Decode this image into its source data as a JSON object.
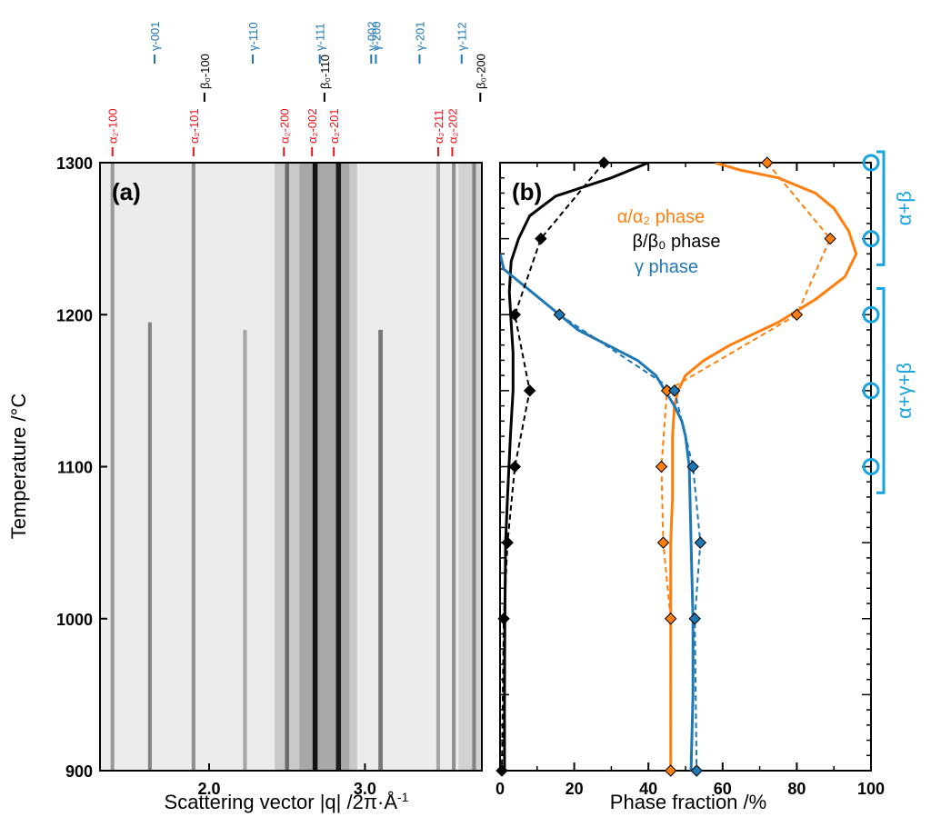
{
  "colors": {
    "alpha": "#ff7f0e",
    "beta": "#000000",
    "gamma": "#1f77b4",
    "alpha_ref": "#e8141a",
    "gamma_ref": "#1f77b4",
    "beta_ref": "#000000",
    "phase_region": "#1aa3dc"
  },
  "chart_data": [
    {
      "type": "heatmap",
      "panel_label": "(a)",
      "xlabel": "Scattering vector |q| /2π·Å",
      "xlabel_sup": "-1",
      "ylabel": "Temperature /°C",
      "xlim": [
        1.3,
        3.75
      ],
      "ylim": [
        900,
        1300
      ],
      "xticks": [
        2.0,
        3.0
      ],
      "xtick_labels": [
        "2.0",
        "3.0"
      ],
      "yticks": [
        900,
        1000,
        1100,
        1200,
        1300
      ],
      "ytick_labels": [
        "900",
        "1000",
        "1100",
        "1200",
        "1300"
      ],
      "peaks": [
        {
          "q": 1.38,
          "intensity": 0.35,
          "width": 0.012,
          "t_end": 1300
        },
        {
          "q": 1.62,
          "intensity": 0.45,
          "width": 0.012,
          "t_end": 1195
        },
        {
          "q": 1.9,
          "intensity": 0.4,
          "width": 0.012,
          "t_end": 1300
        },
        {
          "q": 2.23,
          "intensity": 0.3,
          "width": 0.012,
          "t_end": 1190
        },
        {
          "q": 2.5,
          "intensity": 0.55,
          "width": 0.013,
          "t_end": 1300
        },
        {
          "q": 2.68,
          "intensity": 0.95,
          "width": 0.016,
          "t_end": 1300
        },
        {
          "q": 2.83,
          "intensity": 0.9,
          "width": 0.016,
          "t_end": 1300
        },
        {
          "q": 3.1,
          "intensity": 0.5,
          "width": 0.014,
          "t_end": 1190
        },
        {
          "q": 3.47,
          "intensity": 0.3,
          "width": 0.012,
          "t_end": 1300
        },
        {
          "q": 3.57,
          "intensity": 0.4,
          "width": 0.012,
          "t_end": 1300
        },
        {
          "q": 3.7,
          "intensity": 0.45,
          "width": 0.012,
          "t_end": 1300
        }
      ],
      "reference_lines": [
        {
          "phase": "alpha",
          "label": "α₂-100",
          "q": 1.38,
          "row": 3
        },
        {
          "phase": "alpha",
          "label": "α₂-101",
          "q": 1.9,
          "row": 3
        },
        {
          "phase": "alpha",
          "label": "α₂-200",
          "q": 2.48,
          "row": 3
        },
        {
          "phase": "alpha",
          "label": "α₂-002",
          "q": 2.66,
          "row": 3
        },
        {
          "phase": "alpha",
          "label": "α₂-201",
          "q": 2.8,
          "row": 3
        },
        {
          "phase": "alpha",
          "label": "α₂-211",
          "q": 3.47,
          "row": 3
        },
        {
          "phase": "alpha",
          "label": "α₂-202",
          "q": 3.56,
          "row": 3
        },
        {
          "phase": "beta",
          "label": "β₀-100",
          "q": 1.97,
          "row": 2
        },
        {
          "phase": "beta",
          "label": "β₀-110",
          "q": 2.74,
          "row": 2
        },
        {
          "phase": "beta",
          "label": "β₀-200",
          "q": 3.74,
          "row": 2
        },
        {
          "phase": "gamma",
          "label": "γ-001",
          "q": 1.65,
          "row": 1
        },
        {
          "phase": "gamma",
          "label": "γ-110",
          "q": 2.28,
          "row": 1
        },
        {
          "phase": "gamma",
          "label": "γ-111",
          "q": 2.71,
          "row": 1
        },
        {
          "phase": "gamma",
          "label": "γ-002",
          "q": 3.04,
          "row": 1
        },
        {
          "phase": "gamma",
          "label": "γ-200",
          "q": 3.07,
          "row": 1
        },
        {
          "phase": "gamma",
          "label": "γ-201",
          "q": 3.35,
          "row": 1
        },
        {
          "phase": "gamma",
          "label": "γ-112",
          "q": 3.62,
          "row": 1
        }
      ]
    },
    {
      "type": "line",
      "panel_label": "(b)",
      "xlabel": "Phase fraction /%",
      "ylabel": "",
      "xlim": [
        0,
        100
      ],
      "ylim": [
        900,
        1300
      ],
      "xticks": [
        0,
        20,
        40,
        60,
        80,
        100
      ],
      "xtick_labels": [
        "0",
        "20",
        "40",
        "60",
        "80",
        "100"
      ],
      "legend": [
        "α/α₂ phase",
        "β/β₀ phase",
        "γ phase"
      ],
      "legend_position": "top-center",
      "series": [
        {
          "name": "α/α₂ phase",
          "color_key": "alpha",
          "style": "solid",
          "points": [
            [
              58,
              1300
            ],
            [
              65,
              1295
            ],
            [
              75,
              1290
            ],
            [
              85,
              1280
            ],
            [
              90,
              1270
            ],
            [
              94,
              1255
            ],
            [
              96,
              1240
            ],
            [
              93,
              1225
            ],
            [
              85,
              1210
            ],
            [
              75,
              1195
            ],
            [
              62,
              1180
            ],
            [
              55,
              1170
            ],
            [
              50,
              1160
            ],
            [
              48,
              1150
            ],
            [
              47,
              1140
            ],
            [
              46.5,
              1120
            ],
            [
              46.5,
              1080
            ],
            [
              46,
              1050
            ],
            [
              46,
              1000
            ],
            [
              46,
              950
            ],
            [
              46,
              900
            ]
          ]
        },
        {
          "name": "β/β₀ phase",
          "color_key": "beta",
          "style": "solid",
          "points": [
            [
              40,
              1300
            ],
            [
              30,
              1290
            ],
            [
              15,
              1278
            ],
            [
              8,
              1265
            ],
            [
              5,
              1250
            ],
            [
              3,
              1235
            ],
            [
              2.5,
              1215
            ],
            [
              3,
              1195
            ],
            [
              3.5,
              1175
            ],
            [
              3.5,
              1150
            ],
            [
              2.8,
              1120
            ],
            [
              2,
              1080
            ],
            [
              1.5,
              1050
            ],
            [
              1.3,
              1000
            ],
            [
              1.2,
              950
            ],
            [
              1.2,
              900
            ]
          ]
        },
        {
          "name": "γ phase",
          "color_key": "gamma",
          "style": "solid",
          "points": [
            [
              0,
              1240
            ],
            [
              1,
              1230
            ],
            [
              5,
              1222
            ],
            [
              10,
              1212
            ],
            [
              15,
              1202
            ],
            [
              21,
              1190
            ],
            [
              29,
              1180
            ],
            [
              37,
              1170
            ],
            [
              42,
              1160
            ],
            [
              45,
              1148
            ],
            [
              47,
              1140
            ],
            [
              49,
              1130
            ],
            [
              50,
              1120
            ],
            [
              51,
              1100
            ],
            [
              51.5,
              1050
            ],
            [
              52,
              1000
            ],
            [
              52,
              950
            ],
            [
              51.5,
              900
            ]
          ]
        },
        {
          "name": "α/α₂ phase",
          "color_key": "alpha",
          "style": "dashed",
          "markers": true,
          "points": [
            [
              72,
              1300
            ],
            [
              89,
              1250
            ],
            [
              80,
              1200
            ],
            [
              45,
              1150
            ],
            [
              43.5,
              1100
            ],
            [
              44,
              1050
            ],
            [
              46,
              1000
            ],
            [
              46,
              900
            ]
          ]
        },
        {
          "name": "β/β₀ phase",
          "color_key": "beta",
          "style": "dashed",
          "markers": true,
          "points": [
            [
              28,
              1300
            ],
            [
              11,
              1250
            ],
            [
              4,
              1200
            ],
            [
              8,
              1150
            ],
            [
              4,
              1100
            ],
            [
              2,
              1050
            ],
            [
              1,
              1000
            ],
            [
              0.5,
              900
            ]
          ]
        },
        {
          "name": "γ phase",
          "color_key": "gamma",
          "style": "dashed",
          "markers": true,
          "points": [
            [
              16,
              1200
            ],
            [
              47,
              1150
            ],
            [
              52,
              1100
            ],
            [
              54,
              1050
            ],
            [
              52.5,
              1000
            ],
            [
              53,
              900
            ]
          ]
        }
      ],
      "region_markers": {
        "temperatures": [
          1300,
          1250,
          1200,
          1150,
          1100
        ],
        "x": 100
      },
      "regions": [
        {
          "label": "α+β",
          "t_top": 1300,
          "t_bottom": 1240
        },
        {
          "label": "α+γ+β",
          "t_top": 1210,
          "t_bottom": 1090
        }
      ]
    }
  ]
}
